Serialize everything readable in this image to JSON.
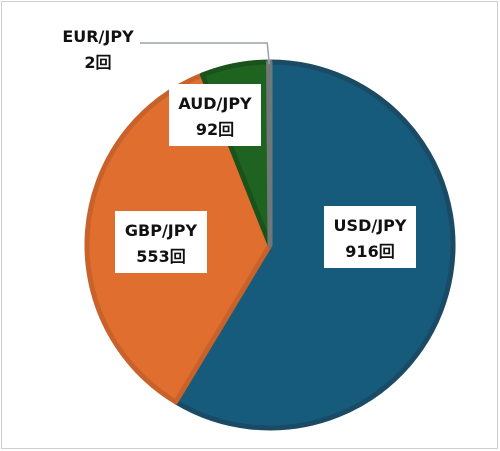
{
  "chart_data": {
    "type": "pie",
    "categories": [
      "USD/JPY",
      "GBP/JPY",
      "AUD/JPY",
      "EUR/JPY"
    ],
    "values": [
      916,
      553,
      92,
      2
    ],
    "data_labels": [
      "916回",
      "553回",
      "92回",
      "2回"
    ],
    "colors": [
      "#165B7C",
      "#E06F2F",
      "#1E6420",
      "#7F8C8D"
    ],
    "border_colors": [
      "#1A4A64",
      "#C9622A",
      "#1A521B",
      "#6F7879"
    ],
    "start_angle_deg": 0,
    "direction": "clockwise",
    "legend": "none"
  }
}
